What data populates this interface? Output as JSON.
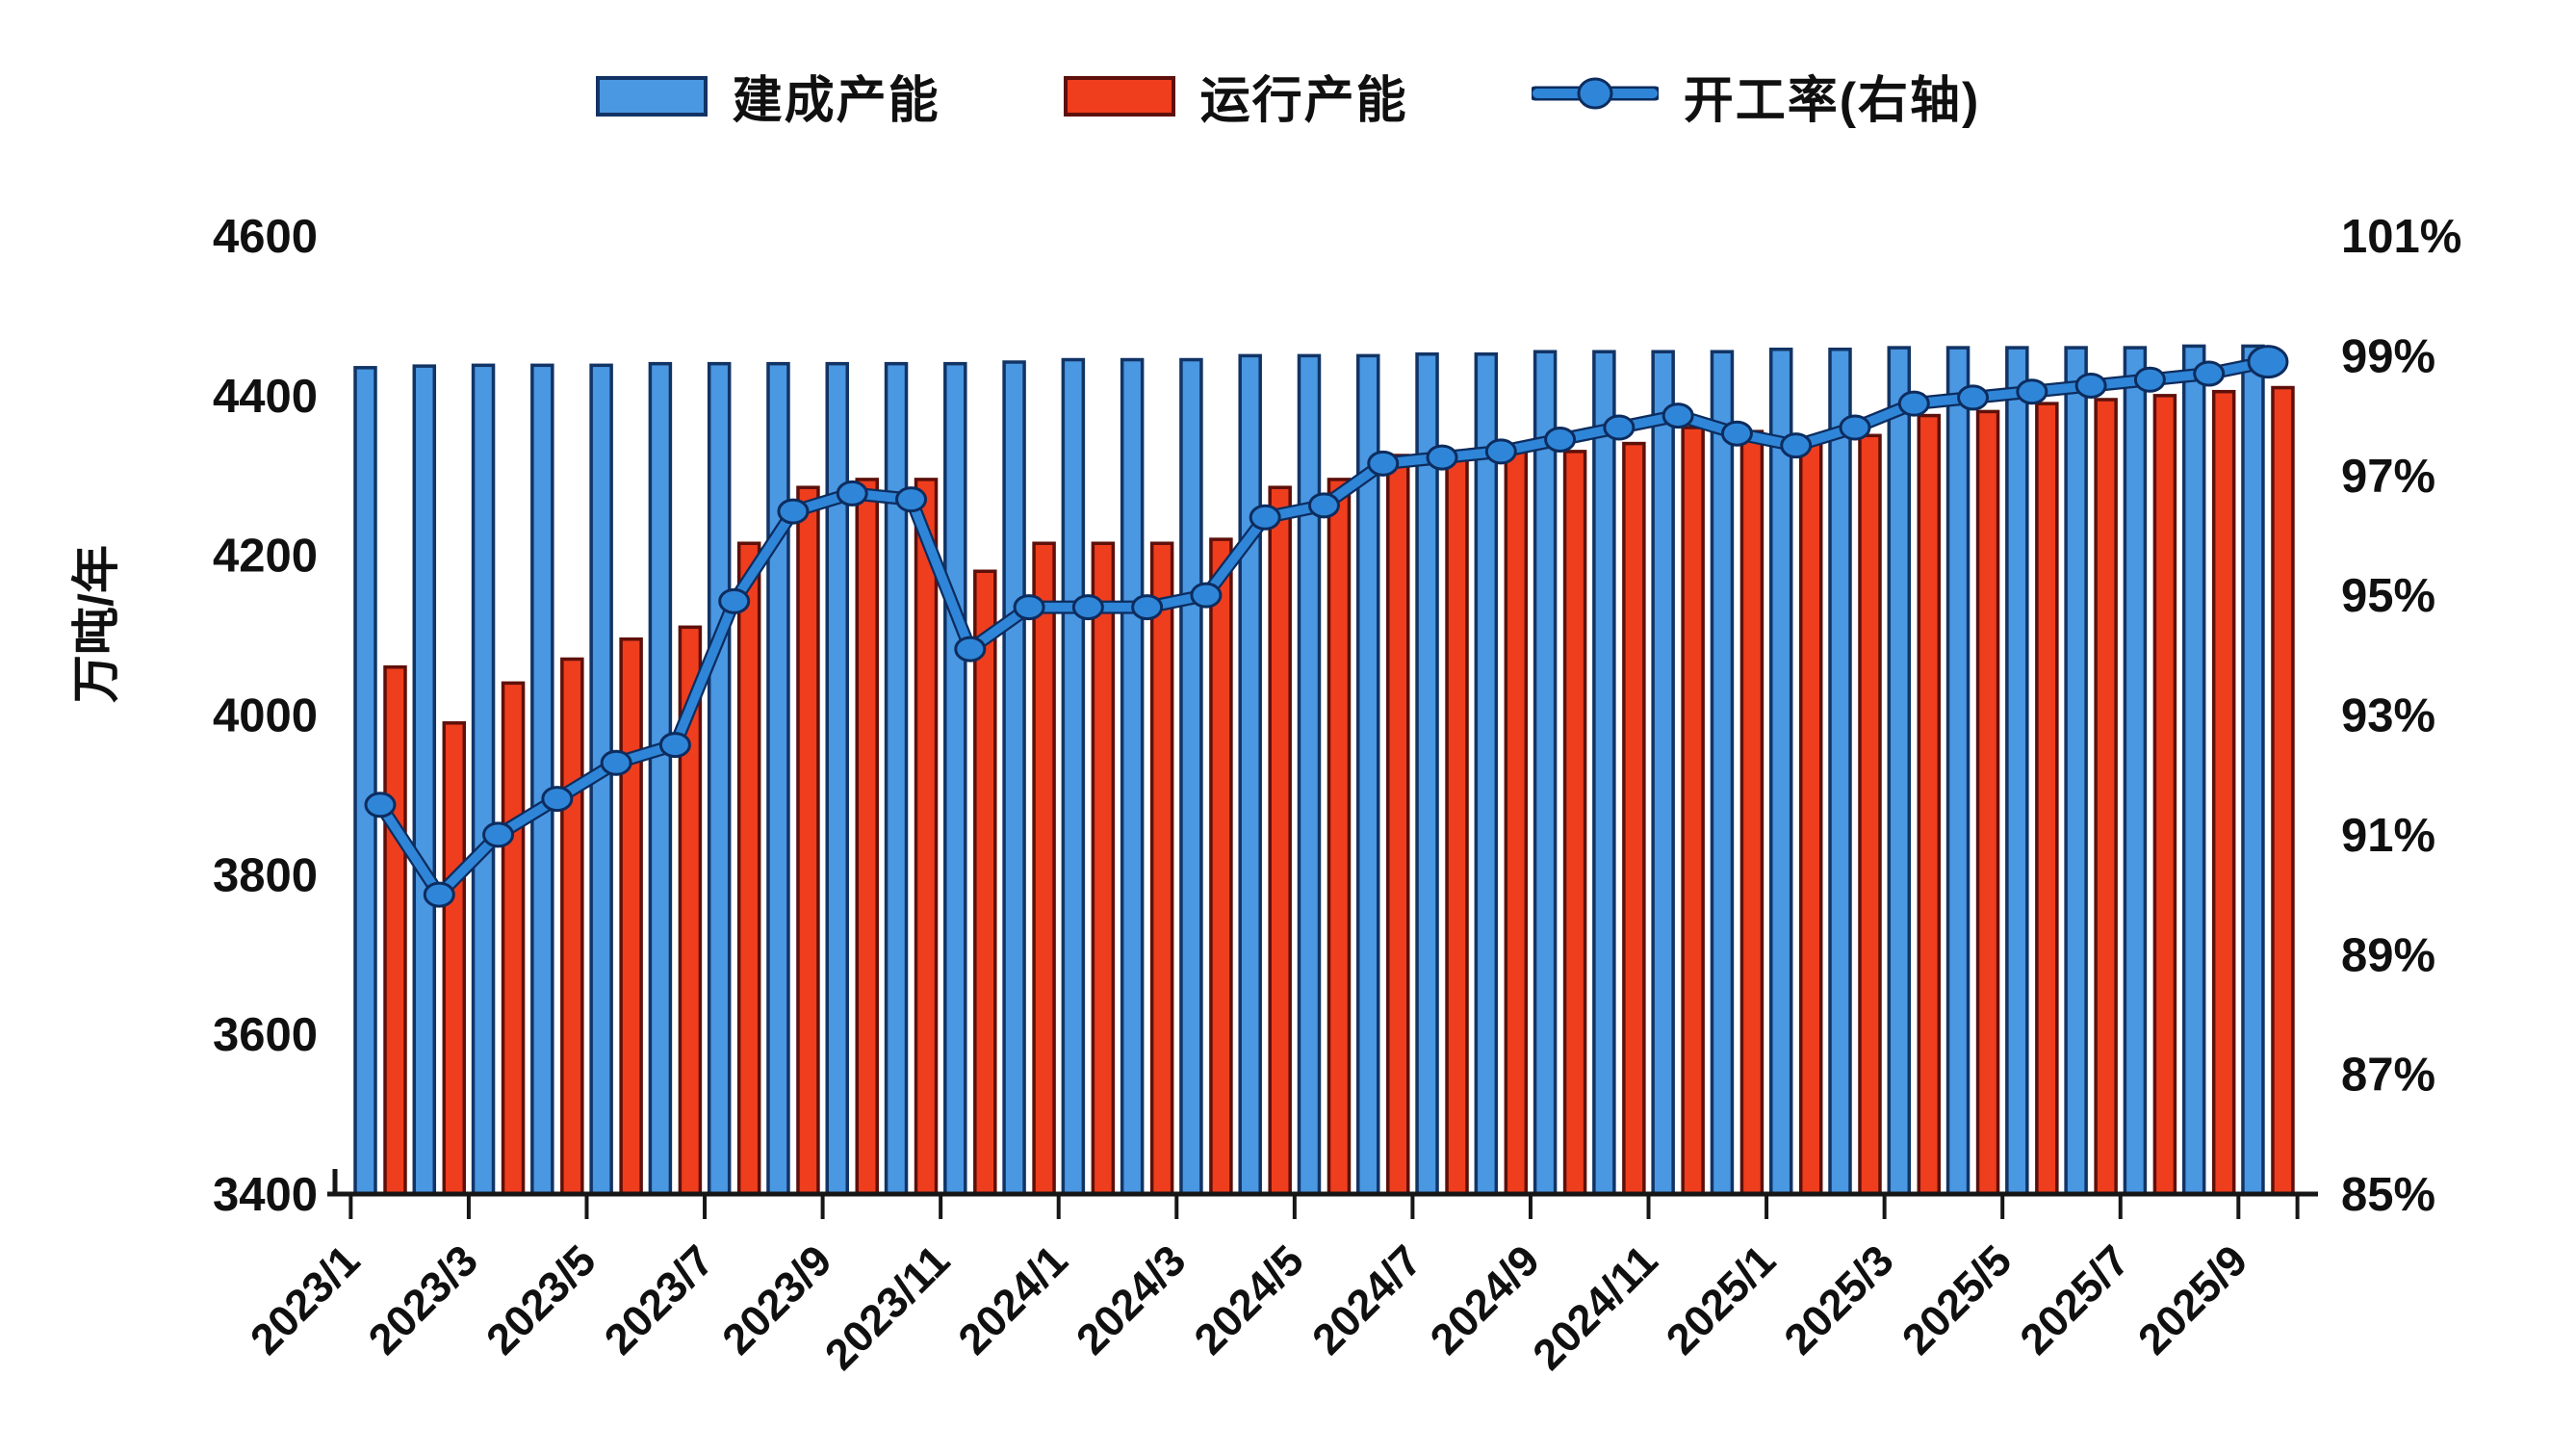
{
  "legend": {
    "items": [
      {
        "label": "建成产能",
        "type": "bar",
        "color": "#4a97e2"
      },
      {
        "label": "运行产能",
        "type": "bar",
        "color": "#ee3e1e"
      },
      {
        "label": "开工率(右轴)",
        "type": "line",
        "color": "#2f86d8"
      }
    ]
  },
  "colors": {
    "blue_bar": "#4a97e2",
    "blue_bar_edge": "#123465",
    "red_bar": "#ee3e1e",
    "red_bar_edge": "#5e100a",
    "line": "#2f86d8",
    "line_edge": "#0d2c5e",
    "axis": "#161616",
    "text": "#101010"
  },
  "chart_data": {
    "type": "bar",
    "title": "",
    "categories": [
      "2023/1",
      "2023/2",
      "2023/3",
      "2023/4",
      "2023/5",
      "2023/6",
      "2023/7",
      "2023/8",
      "2023/9",
      "2023/10",
      "2023/11",
      "2023/12",
      "2024/1",
      "2024/2",
      "2024/3",
      "2024/4",
      "2024/5",
      "2024/6",
      "2024/7",
      "2024/8",
      "2024/9",
      "2024/10",
      "2024/11",
      "2024/12",
      "2025/1",
      "2025/2",
      "2025/3",
      "2025/4",
      "2025/5",
      "2025/6",
      "2025/7",
      "2025/8",
      "2025/9"
    ],
    "x_tick_labels": [
      "2023/1",
      "2023/3",
      "2023/5",
      "2023/7",
      "2023/9",
      "2023/11",
      "2024/1",
      "2024/3",
      "2024/5",
      "2024/7",
      "2024/9",
      "2024/11",
      "2025/1",
      "2025/3",
      "2025/5",
      "2025/7",
      "2025/9"
    ],
    "series": [
      {
        "name": "建成产能",
        "type": "bar",
        "axis": "left",
        "values": [
          4435,
          4437,
          4438,
          4438,
          4438,
          4440,
          4440,
          4440,
          4440,
          4440,
          4440,
          4442,
          4445,
          4445,
          4445,
          4450,
          4450,
          4450,
          4452,
          4452,
          4455,
          4455,
          4455,
          4455,
          4458,
          4458,
          4460,
          4460,
          4460,
          4460,
          4460,
          4462,
          4462
        ]
      },
      {
        "name": "运行产能",
        "type": "bar",
        "axis": "left",
        "values": [
          4060,
          3990,
          4040,
          4070,
          4095,
          4110,
          4215,
          4285,
          4295,
          4295,
          4180,
          4215,
          4215,
          4215,
          4220,
          4285,
          4295,
          4325,
          4330,
          4335,
          4330,
          4340,
          4360,
          4355,
          4340,
          4350,
          4375,
          4380,
          4390,
          4395,
          4400,
          4405,
          4410
        ]
      },
      {
        "name": "开工率(右轴)",
        "type": "line",
        "axis": "right",
        "unit": "%",
        "values": [
          91.5,
          90.0,
          91.0,
          91.6,
          92.2,
          92.5,
          94.9,
          96.4,
          96.7,
          96.6,
          94.1,
          94.8,
          94.8,
          94.8,
          95.0,
          96.3,
          96.5,
          97.2,
          97.3,
          97.4,
          97.6,
          97.8,
          98.0,
          97.7,
          97.5,
          97.8,
          98.2,
          98.3,
          98.4,
          98.5,
          98.6,
          98.7,
          98.9
        ]
      }
    ],
    "left_axis": {
      "label": "万吨/年",
      "min": 3400,
      "max": 4600,
      "step": 200,
      "ticks": [
        "4600",
        "4400",
        "4200",
        "4000",
        "3800",
        "3600",
        "3400"
      ]
    },
    "right_axis": {
      "label": "",
      "min": 85,
      "max": 101,
      "step": 2,
      "ticks": [
        "101%",
        "99%",
        "97%",
        "95%",
        "93%",
        "91%",
        "89%",
        "87%",
        "85%"
      ]
    },
    "grid": false,
    "legend_position": "top"
  }
}
